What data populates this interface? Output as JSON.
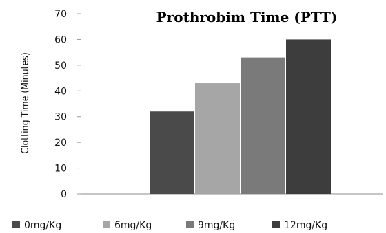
{
  "chart_data": {
    "type": "bar",
    "title": "Prothrobim Time (PTT)",
    "xlabel": "",
    "ylabel": "Clotting Time (Minutes)",
    "ylim": [
      0,
      70
    ],
    "yticks": [
      0,
      10,
      20,
      30,
      40,
      50,
      60,
      70
    ],
    "grid": false,
    "legend_position": "bottom",
    "categories": [
      ""
    ],
    "series": [
      {
        "name": "0mg/Kg",
        "values": [
          32
        ],
        "color": "#4a4a4a"
      },
      {
        "name": "6mg/Kg",
        "values": [
          43
        ],
        "color": "#a6a6a6"
      },
      {
        "name": "9mg/Kg",
        "values": [
          53
        ],
        "color": "#7a7a7a"
      },
      {
        "name": "12mg/Kg",
        "values": [
          60
        ],
        "color": "#3d3d3d"
      }
    ]
  }
}
